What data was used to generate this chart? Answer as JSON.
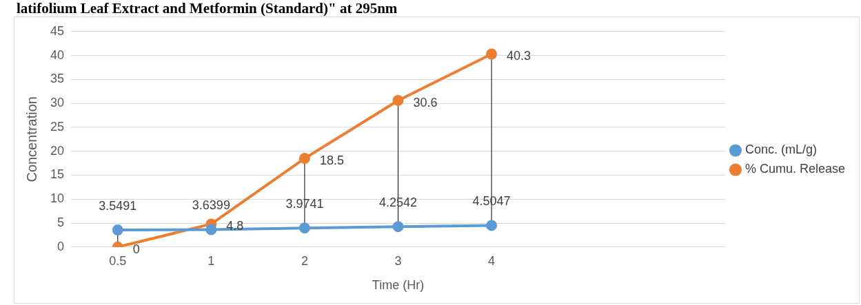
{
  "chart_data": {
    "type": "line",
    "title": "latifolium Leaf Extract and Metformin (Standard)\" at 295nm",
    "xlabel": "Time (Hr)",
    "ylabel": "Concentration",
    "categories": [
      "0.5",
      "1",
      "2",
      "3",
      "4",
      null,
      null
    ],
    "series": [
      {
        "name": "Conc. (mL/g)",
        "color": "#5b9bd5",
        "values": [
          3.5491,
          3.6399,
          3.9741,
          4.2542,
          4.5047,
          null,
          null
        ]
      },
      {
        "name": "% Cumu. Release",
        "color": "#ed7d31",
        "values": [
          0,
          4.8,
          18.5,
          30.6,
          40.3,
          null,
          null
        ]
      }
    ],
    "ylim": [
      0,
      45
    ],
    "yticks": [
      0,
      5,
      10,
      15,
      20,
      25,
      30,
      35,
      40,
      45
    ],
    "grid": "y",
    "legend": "right",
    "marker": "circle",
    "line_style": "solid",
    "data_labels": true
  }
}
